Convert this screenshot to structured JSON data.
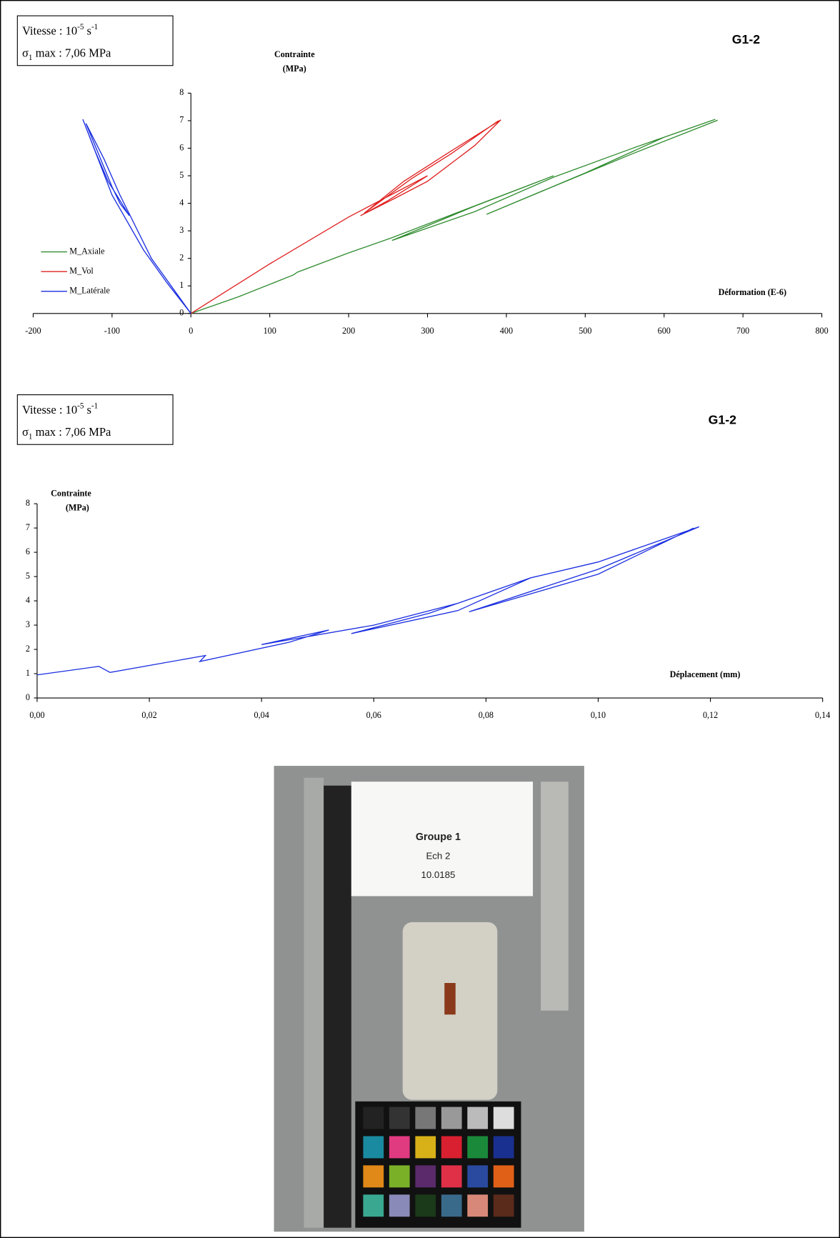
{
  "chart_data": [
    {
      "type": "line",
      "title": "G1-2",
      "info": [
        [
          "Vitesse : 10",
          "-5",
          " s",
          "-1"
        ],
        [
          "σ",
          "1",
          " max : 7,06 MPa"
        ]
      ],
      "y_label": [
        "Contrainte",
        "(MPa)"
      ],
      "x_label": "Déformation (E-6)",
      "xlim": [
        -200,
        800
      ],
      "xticks": [
        -200,
        -100,
        0,
        100,
        200,
        300,
        400,
        500,
        600,
        700,
        800
      ],
      "ylim": [
        0,
        8
      ],
      "yticks": [
        0,
        1,
        2,
        3,
        4,
        5,
        6,
        7,
        8
      ],
      "legend": "left",
      "series": [
        {
          "name": "M_Axiale",
          "color": "#2e8b2e",
          "x": [
            0,
            60,
            130,
            135,
            200,
            255,
            350,
            460,
            360,
            255,
            300,
            360,
            460,
            560,
            665,
            600,
            500,
            375,
            450,
            560,
            668
          ],
          "values": [
            0,
            0.6,
            1.4,
            1.5,
            2.2,
            2.75,
            3.8,
            5.0,
            3.9,
            2.65,
            3.1,
            3.7,
            4.95,
            6.0,
            7.05,
            6.4,
            5.1,
            3.6,
            4.5,
            5.8,
            7.02
          ]
        },
        {
          "name": "M_Vol",
          "color": "#e02020",
          "x": [
            0,
            100,
            200,
            260,
            300,
            250,
            215,
            260,
            300,
            360,
            393,
            330,
            270,
            220,
            280,
            330,
            390
          ],
          "values": [
            0,
            1.8,
            3.5,
            4.4,
            5.0,
            4.1,
            3.55,
            4.2,
            4.8,
            6.1,
            7.03,
            5.9,
            4.8,
            3.65,
            4.9,
            5.8,
            7.0
          ]
        },
        {
          "name": "M_Latérale",
          "color": "#1a2ee0",
          "x": [
            0,
            -30,
            -60,
            -100,
            -137,
            -120,
            -105,
            -78,
            -90,
            -100,
            -133,
            -110,
            -90,
            -50,
            0
          ],
          "values": [
            0,
            1.1,
            2.3,
            4.3,
            7.05,
            5.8,
            4.8,
            3.55,
            4.0,
            4.6,
            6.9,
            5.6,
            4.3,
            2.0,
            0
          ]
        }
      ]
    },
    {
      "type": "line",
      "title": "G1-2",
      "info": [
        [
          "Vitesse : 10",
          "-5",
          " s",
          "-1"
        ],
        [
          "σ",
          "1",
          " max : 7,06 MPa"
        ]
      ],
      "y_label": [
        "Contrainte",
        "(MPa)"
      ],
      "x_label": "Déplacement (mm)",
      "xlim": [
        0,
        0.14
      ],
      "xticks": [
        {
          "value": 0,
          "label": "0,00"
        },
        {
          "value": 0.02,
          "label": "0,02"
        },
        {
          "value": 0.04,
          "label": "0,04"
        },
        {
          "value": 0.06,
          "label": "0,06"
        },
        {
          "value": 0.08,
          "label": "0,08"
        },
        {
          "value": 0.1,
          "label": "0,10"
        },
        {
          "value": 0.12,
          "label": "0,12"
        },
        {
          "value": 0.14,
          "label": "0,14"
        }
      ],
      "ylim": [
        0,
        8
      ],
      "yticks": [
        0,
        1,
        2,
        3,
        4,
        5,
        6,
        7,
        8
      ],
      "series": [
        {
          "color": "#1a2ee0",
          "x": [
            0,
            0.011,
            0.013,
            0.03,
            0.029,
            0.045,
            0.052,
            0.04,
            0.06,
            0.075,
            0.088,
            0.07,
            0.056,
            0.075,
            0.088,
            0.1,
            0.118,
            0.1,
            0.077,
            0.1,
            0.117
          ],
          "values": [
            0.95,
            1.3,
            1.05,
            1.75,
            1.5,
            2.3,
            2.8,
            2.2,
            3.0,
            3.9,
            4.95,
            3.5,
            2.65,
            3.6,
            4.95,
            5.6,
            7.05,
            5.3,
            3.55,
            5.1,
            7.0
          ]
        }
      ]
    }
  ],
  "photo": {
    "card": [
      "Groupe 1",
      "Ech 2",
      "10.0185"
    ]
  }
}
